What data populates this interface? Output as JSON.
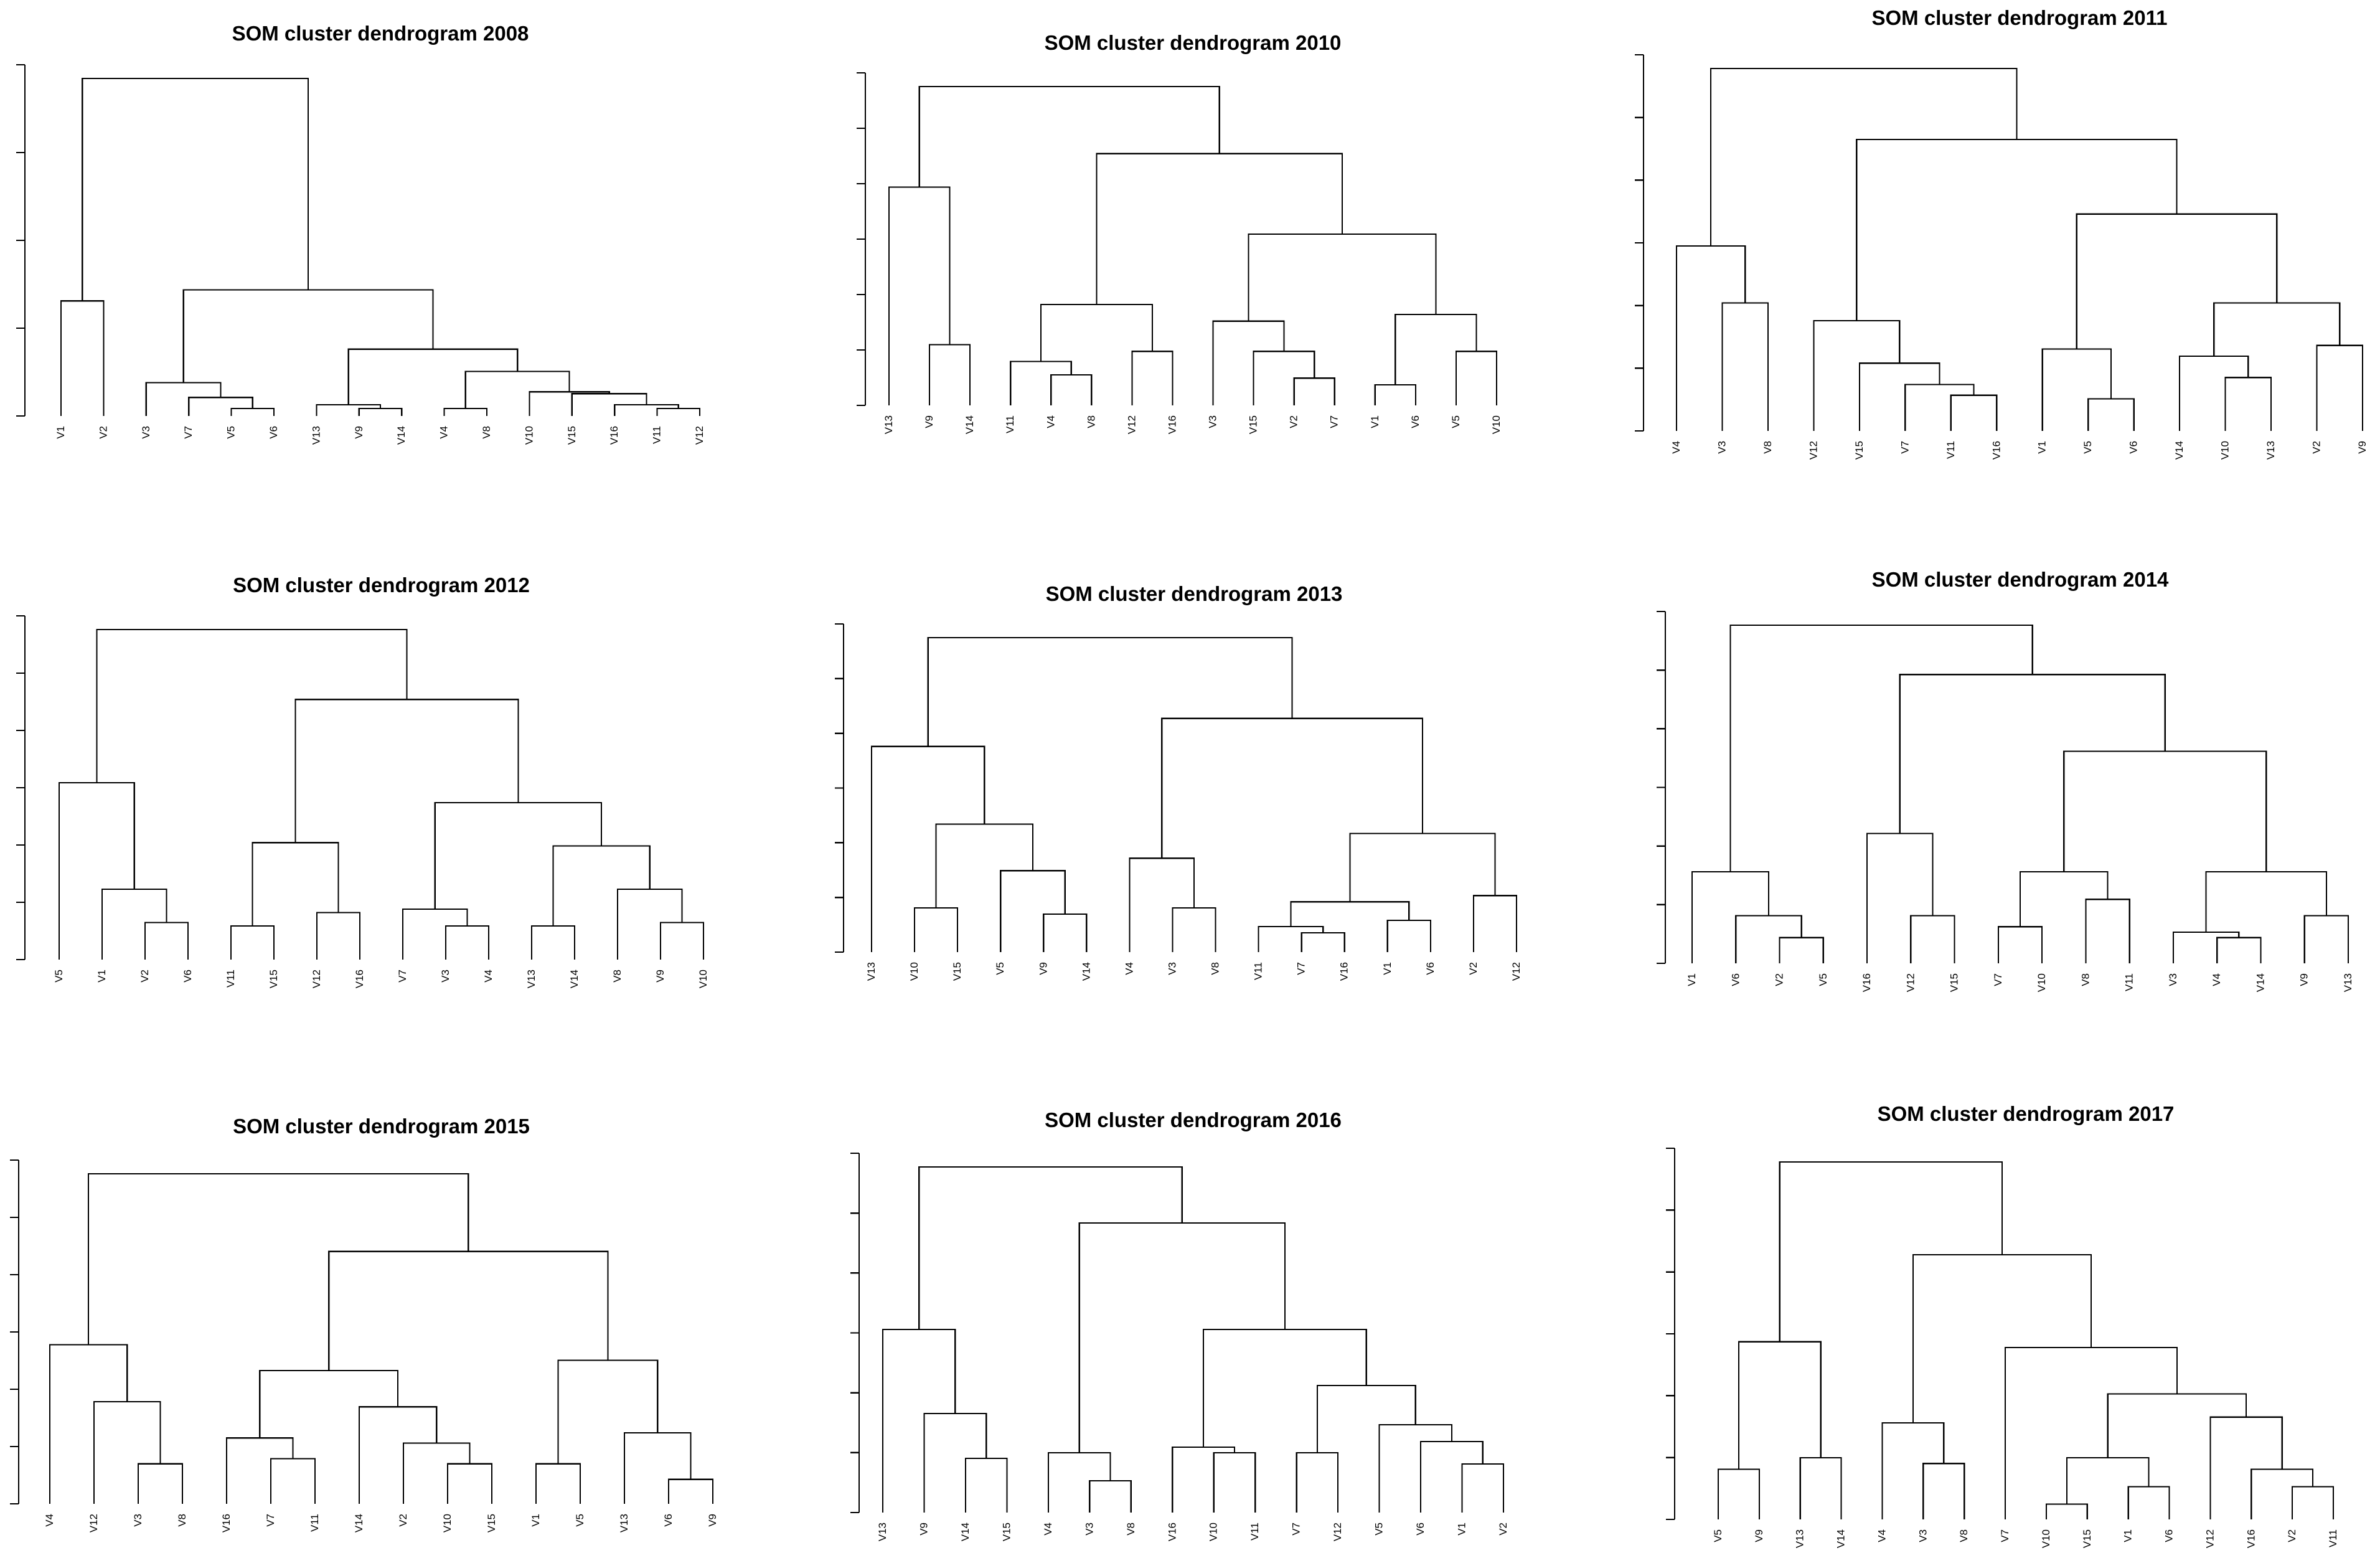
{
  "chart_data": [
    {
      "type": "dendrogram",
      "title": "SOM cluster dendrogram 2008",
      "leaves": [
        "V1",
        "V2",
        "V3",
        "V7",
        "V5",
        "V6",
        "V13",
        "V9",
        "V14",
        "V4",
        "V8",
        "V10",
        "V15",
        "V16",
        "V11",
        "V12"
      ],
      "axis_ticks": 5,
      "merges": [
        {
          "a": "V1",
          "b": "V2",
          "h": 0.3
        },
        {
          "a": "V5",
          "b": "V6",
          "h": 0.01
        },
        {
          "a": "V7",
          "b": "m2",
          "h": 0.04
        },
        {
          "a": "V3",
          "b": "m3",
          "h": 0.08
        },
        {
          "a": "V9",
          "b": "V14",
          "h": 0.01
        },
        {
          "a": "V13",
          "b": "m5",
          "h": 0.02
        },
        {
          "a": "V11",
          "b": "V12",
          "h": 0.01
        },
        {
          "a": "V16",
          "b": "m7",
          "h": 0.02
        },
        {
          "a": "V15",
          "b": "m8",
          "h": 0.05
        },
        {
          "a": "V10",
          "b": "m9",
          "h": 0.055
        },
        {
          "a": "V4",
          "b": "V8",
          "h": 0.01
        },
        {
          "a": "m11",
          "b": "m10",
          "h": 0.11
        },
        {
          "a": "m6",
          "b": "m12",
          "h": 0.17
        },
        {
          "a": "m4",
          "b": "m13",
          "h": 0.33
        },
        {
          "a": "m1",
          "b": "m14",
          "h": 0.9
        }
      ]
    },
    {
      "type": "dendrogram",
      "title": "SOM cluster dendrogram 2010",
      "leaves": [
        "V13",
        "V9",
        "V14",
        "V11",
        "V4",
        "V8",
        "V12",
        "V16",
        "V3",
        "V15",
        "V2",
        "V7",
        "V1",
        "V6",
        "V5",
        "V10"
      ],
      "axis_ticks": 7,
      "merges": [
        {
          "a": "V9",
          "b": "V14",
          "h": 0.17
        },
        {
          "a": "V13",
          "b": "m1",
          "h": 0.64
        },
        {
          "a": "V4",
          "b": "V8",
          "h": 0.08
        },
        {
          "a": "V11",
          "b": "m3",
          "h": 0.12
        },
        {
          "a": "V12",
          "b": "V16",
          "h": 0.15
        },
        {
          "a": "m4",
          "b": "m5",
          "h": 0.29
        },
        {
          "a": "V2",
          "b": "V7",
          "h": 0.07
        },
        {
          "a": "V15",
          "b": "m7",
          "h": 0.15
        },
        {
          "a": "V3",
          "b": "m8",
          "h": 0.24
        },
        {
          "a": "V1",
          "b": "V6",
          "h": 0.05
        },
        {
          "a": "V5",
          "b": "V10",
          "h": 0.15
        },
        {
          "a": "m10",
          "b": "m11",
          "h": 0.26
        },
        {
          "a": "m9",
          "b": "m12",
          "h": 0.5
        },
        {
          "a": "m6",
          "b": "m13",
          "h": 0.74
        },
        {
          "a": "m2",
          "b": "m14",
          "h": 0.94
        }
      ]
    },
    {
      "type": "dendrogram",
      "title": "SOM cluster dendrogram 2011",
      "leaves": [
        "V4",
        "V3",
        "V8",
        "V12",
        "V15",
        "V7",
        "V11",
        "V16",
        "V1",
        "V5",
        "V6",
        "V14",
        "V10",
        "V13",
        "V2",
        "V9"
      ],
      "axis_ticks": 7,
      "merges": [
        {
          "a": "V3",
          "b": "V8",
          "h": 0.35
        },
        {
          "a": "V4",
          "b": "m1",
          "h": 0.51
        },
        {
          "a": "V11",
          "b": "V16",
          "h": 0.09
        },
        {
          "a": "V7",
          "b": "m3",
          "h": 0.12
        },
        {
          "a": "V15",
          "b": "m4",
          "h": 0.18
        },
        {
          "a": "V12",
          "b": "m5",
          "h": 0.3
        },
        {
          "a": "V5",
          "b": "V6",
          "h": 0.08
        },
        {
          "a": "V1",
          "b": "m7",
          "h": 0.22
        },
        {
          "a": "V10",
          "b": "V13",
          "h": 0.14
        },
        {
          "a": "V14",
          "b": "m9",
          "h": 0.2
        },
        {
          "a": "V2",
          "b": "V9",
          "h": 0.23
        },
        {
          "a": "m10",
          "b": "m11",
          "h": 0.35
        },
        {
          "a": "m8",
          "b": "m12",
          "h": 0.6
        },
        {
          "a": "m6",
          "b": "m13",
          "h": 0.81
        },
        {
          "a": "m2",
          "b": "m14",
          "h": 1.01
        }
      ]
    },
    {
      "type": "dendrogram",
      "title": "SOM cluster dendrogram 2012",
      "leaves": [
        "V5",
        "V1",
        "V2",
        "V6",
        "V11",
        "V15",
        "V12",
        "V16",
        "V7",
        "V3",
        "V4",
        "V13",
        "V14",
        "V8",
        "V9",
        "V10"
      ],
      "axis_ticks": 7,
      "merges": [
        {
          "a": "V2",
          "b": "V6",
          "h": 0.1
        },
        {
          "a": "V1",
          "b": "m1",
          "h": 0.2
        },
        {
          "a": "V5",
          "b": "m2",
          "h": 0.52
        },
        {
          "a": "V11",
          "b": "V15",
          "h": 0.09
        },
        {
          "a": "V12",
          "b": "V16",
          "h": 0.13
        },
        {
          "a": "m4",
          "b": "m5",
          "h": 0.34
        },
        {
          "a": "V3",
          "b": "V4",
          "h": 0.09
        },
        {
          "a": "V7",
          "b": "m7",
          "h": 0.14
        },
        {
          "a": "V13",
          "b": "V14",
          "h": 0.09
        },
        {
          "a": "V9",
          "b": "V10",
          "h": 0.1
        },
        {
          "a": "V8",
          "b": "m10",
          "h": 0.2
        },
        {
          "a": "m9",
          "b": "m11",
          "h": 0.33
        },
        {
          "a": "m8",
          "b": "m12",
          "h": 0.46
        },
        {
          "a": "m6",
          "b": "m13",
          "h": 0.77
        },
        {
          "a": "m3",
          "b": "m14",
          "h": 0.98
        }
      ]
    },
    {
      "type": "dendrogram",
      "title": "SOM cluster dendrogram 2013",
      "leaves": [
        "V13",
        "V10",
        "V15",
        "V5",
        "V9",
        "V14",
        "V4",
        "V3",
        "V8",
        "V11",
        "V7",
        "V16",
        "V1",
        "V6",
        "V2",
        "V12"
      ],
      "axis_ticks": 7,
      "merges": [
        {
          "a": "V10",
          "b": "V15",
          "h": 0.13
        },
        {
          "a": "V9",
          "b": "V14",
          "h": 0.11
        },
        {
          "a": "V5",
          "b": "m2",
          "h": 0.25
        },
        {
          "a": "m1",
          "b": "m3",
          "h": 0.4
        },
        {
          "a": "V13",
          "b": "m4",
          "h": 0.65
        },
        {
          "a": "V3",
          "b": "V8",
          "h": 0.13
        },
        {
          "a": "V4",
          "b": "m6",
          "h": 0.29
        },
        {
          "a": "V7",
          "b": "V16",
          "h": 0.05
        },
        {
          "a": "V11",
          "b": "m8",
          "h": 0.07
        },
        {
          "a": "V1",
          "b": "V6",
          "h": 0.09
        },
        {
          "a": "m9",
          "b": "m10",
          "h": 0.15
        },
        {
          "a": "V2",
          "b": "V12",
          "h": 0.17
        },
        {
          "a": "m11",
          "b": "m12",
          "h": 0.37
        },
        {
          "a": "m7",
          "b": "m13",
          "h": 0.74
        },
        {
          "a": "m5",
          "b": "m14",
          "h": 1.0
        }
      ]
    },
    {
      "type": "dendrogram",
      "title": "SOM cluster dendrogram 2014",
      "leaves": [
        "V1",
        "V6",
        "V2",
        "V5",
        "V16",
        "V12",
        "V15",
        "V7",
        "V10",
        "V8",
        "V11",
        "V3",
        "V4",
        "V14",
        "V9",
        "V13"
      ],
      "axis_ticks": 7,
      "merges": [
        {
          "a": "V2",
          "b": "V5",
          "h": 0.04
        },
        {
          "a": "V6",
          "b": "m1",
          "h": 0.08
        },
        {
          "a": "V1",
          "b": "m2",
          "h": 0.16
        },
        {
          "a": "V12",
          "b": "V15",
          "h": 0.08
        },
        {
          "a": "V16",
          "b": "m4",
          "h": 0.23
        },
        {
          "a": "V7",
          "b": "V10",
          "h": 0.06
        },
        {
          "a": "V8",
          "b": "V11",
          "h": 0.11
        },
        {
          "a": "m6",
          "b": "m7",
          "h": 0.16
        },
        {
          "a": "V4",
          "b": "V14",
          "h": 0.04
        },
        {
          "a": "V3",
          "b": "m9",
          "h": 0.05
        },
        {
          "a": "V9",
          "b": "V13",
          "h": 0.08
        },
        {
          "a": "m10",
          "b": "m11",
          "h": 0.16
        },
        {
          "a": "m8",
          "b": "m12",
          "h": 0.38
        },
        {
          "a": "m5",
          "b": "m13",
          "h": 0.52
        },
        {
          "a": "m3",
          "b": "m14",
          "h": 0.61
        }
      ]
    },
    {
      "type": "dendrogram",
      "title": "SOM cluster dendrogram 2015",
      "leaves": [
        "V4",
        "V12",
        "V3",
        "V8",
        "V16",
        "V7",
        "V11",
        "V14",
        "V2",
        "V10",
        "V15",
        "V1",
        "V5",
        "V13",
        "V6",
        "V9"
      ],
      "axis_ticks": 7,
      "merges": [
        {
          "a": "V3",
          "b": "V8",
          "h": 0.07
        },
        {
          "a": "V12",
          "b": "m1",
          "h": 0.19
        },
        {
          "a": "V4",
          "b": "m2",
          "h": 0.3
        },
        {
          "a": "V7",
          "b": "V11",
          "h": 0.08
        },
        {
          "a": "V16",
          "b": "m4",
          "h": 0.12
        },
        {
          "a": "V10",
          "b": "V15",
          "h": 0.07
        },
        {
          "a": "V2",
          "b": "m6",
          "h": 0.11
        },
        {
          "a": "V14",
          "b": "m7",
          "h": 0.18
        },
        {
          "a": "m5",
          "b": "m8",
          "h": 0.25
        },
        {
          "a": "V1",
          "b": "V5",
          "h": 0.07
        },
        {
          "a": "V6",
          "b": "V9",
          "h": 0.04
        },
        {
          "a": "V13",
          "b": "m11",
          "h": 0.13
        },
        {
          "a": "m10",
          "b": "m12",
          "h": 0.27
        },
        {
          "a": "m9",
          "b": "m13",
          "h": 0.48
        },
        {
          "a": "m3",
          "b": "m14",
          "h": 0.63
        }
      ]
    },
    {
      "type": "dendrogram",
      "title": "SOM cluster dendrogram 2016",
      "leaves": [
        "V13",
        "V9",
        "V14",
        "V15",
        "V4",
        "V3",
        "V8",
        "V16",
        "V10",
        "V11",
        "V7",
        "V12",
        "V5",
        "V6",
        "V1",
        "V2"
      ],
      "axis_ticks": 7,
      "merges": [
        {
          "a": "V14",
          "b": "V15",
          "h": 0.09
        },
        {
          "a": "V9",
          "b": "m1",
          "h": 0.17
        },
        {
          "a": "V13",
          "b": "m2",
          "h": 0.32
        },
        {
          "a": "V3",
          "b": "V8",
          "h": 0.05
        },
        {
          "a": "V4",
          "b": "m4",
          "h": 0.1
        },
        {
          "a": "V10",
          "b": "V11",
          "h": 0.1
        },
        {
          "a": "V16",
          "b": "m6",
          "h": 0.11
        },
        {
          "a": "V1",
          "b": "V2",
          "h": 0.08
        },
        {
          "a": "V6",
          "b": "m8",
          "h": 0.12
        },
        {
          "a": "V5",
          "b": "m9",
          "h": 0.15
        },
        {
          "a": "V7",
          "b": "V12",
          "h": 0.1
        },
        {
          "a": "m11",
          "b": "m10",
          "h": 0.22
        },
        {
          "a": "m7",
          "b": "m12",
          "h": 0.32
        },
        {
          "a": "m5",
          "b": "m13",
          "h": 0.51
        },
        {
          "a": "m3",
          "b": "m14",
          "h": 0.61
        }
      ]
    },
    {
      "type": "dendrogram",
      "title": "SOM cluster dendrogram 2017",
      "leaves": [
        "V5",
        "V9",
        "V13",
        "V14",
        "V4",
        "V3",
        "V8",
        "V7",
        "V10",
        "V15",
        "V1",
        "V6",
        "V12",
        "V16",
        "V2",
        "V11"
      ],
      "axis_ticks": 7,
      "merges": [
        {
          "a": "V5",
          "b": "V9",
          "h": 0.08
        },
        {
          "a": "V13",
          "b": "V14",
          "h": 0.1
        },
        {
          "a": "m1",
          "b": "m2",
          "h": 0.3
        },
        {
          "a": "V3",
          "b": "V8",
          "h": 0.09
        },
        {
          "a": "V4",
          "b": "m4",
          "h": 0.16
        },
        {
          "a": "V10",
          "b": "V15",
          "h": 0.02
        },
        {
          "a": "V1",
          "b": "V6",
          "h": 0.05
        },
        {
          "a": "m6",
          "b": "m7",
          "h": 0.1
        },
        {
          "a": "V2",
          "b": "V11",
          "h": 0.05
        },
        {
          "a": "V16",
          "b": "m9",
          "h": 0.08
        },
        {
          "a": "V12",
          "b": "m10",
          "h": 0.17
        },
        {
          "a": "m8",
          "b": "m11",
          "h": 0.21
        },
        {
          "a": "V7",
          "b": "m12",
          "h": 0.29
        },
        {
          "a": "m5",
          "b": "m13",
          "h": 0.45
        },
        {
          "a": "m3",
          "b": "m14",
          "h": 0.61
        }
      ]
    }
  ]
}
